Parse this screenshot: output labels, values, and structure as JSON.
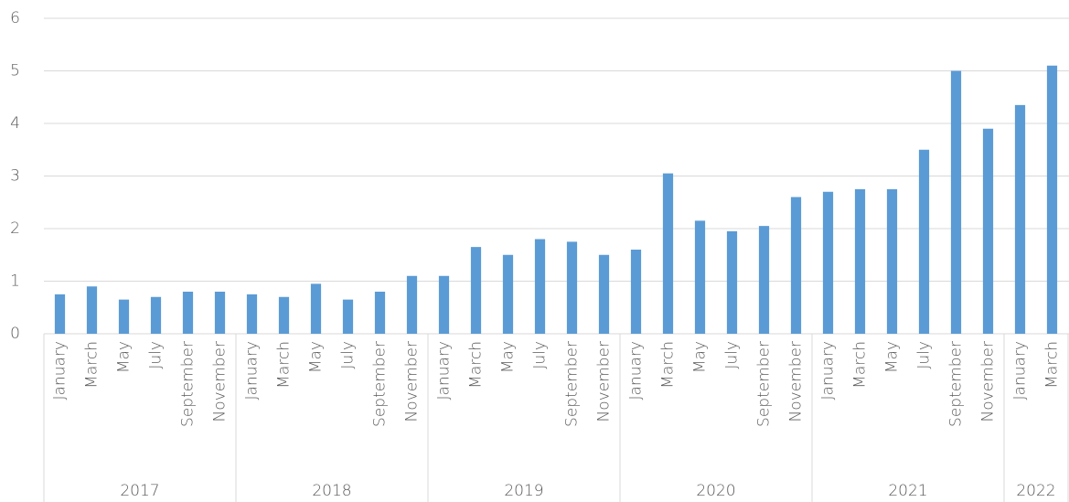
{
  "chart_data": {
    "type": "bar",
    "color": "#5b9bd5",
    "grid": true,
    "ylim": [
      0,
      6
    ],
    "yticks": [
      0,
      1,
      2,
      3,
      4,
      5,
      6
    ],
    "groups": [
      {
        "label": "2017",
        "categories": [
          "January",
          "March",
          "May",
          "July",
          "September",
          "November"
        ],
        "values": [
          0.75,
          0.9,
          0.65,
          0.7,
          0.8,
          0.8
        ]
      },
      {
        "label": "2018",
        "categories": [
          "January",
          "March",
          "May",
          "July",
          "September",
          "November"
        ],
        "values": [
          0.75,
          0.7,
          0.95,
          0.65,
          0.8,
          1.1
        ]
      },
      {
        "label": "2019",
        "categories": [
          "January",
          "March",
          "May",
          "July",
          "September",
          "November"
        ],
        "values": [
          1.1,
          1.65,
          1.5,
          1.8,
          1.75,
          1.5
        ]
      },
      {
        "label": "2020",
        "categories": [
          "January",
          "March",
          "May",
          "July",
          "September",
          "November"
        ],
        "values": [
          1.6,
          3.05,
          2.15,
          1.95,
          2.05,
          2.6
        ]
      },
      {
        "label": "2021",
        "categories": [
          "January",
          "March",
          "May",
          "July",
          "September",
          "November"
        ],
        "values": [
          2.7,
          2.75,
          2.75,
          3.5,
          5.0,
          3.9
        ]
      },
      {
        "label": "2022",
        "categories": [
          "January",
          "March"
        ],
        "values": [
          4.35,
          5.1
        ]
      }
    ]
  }
}
